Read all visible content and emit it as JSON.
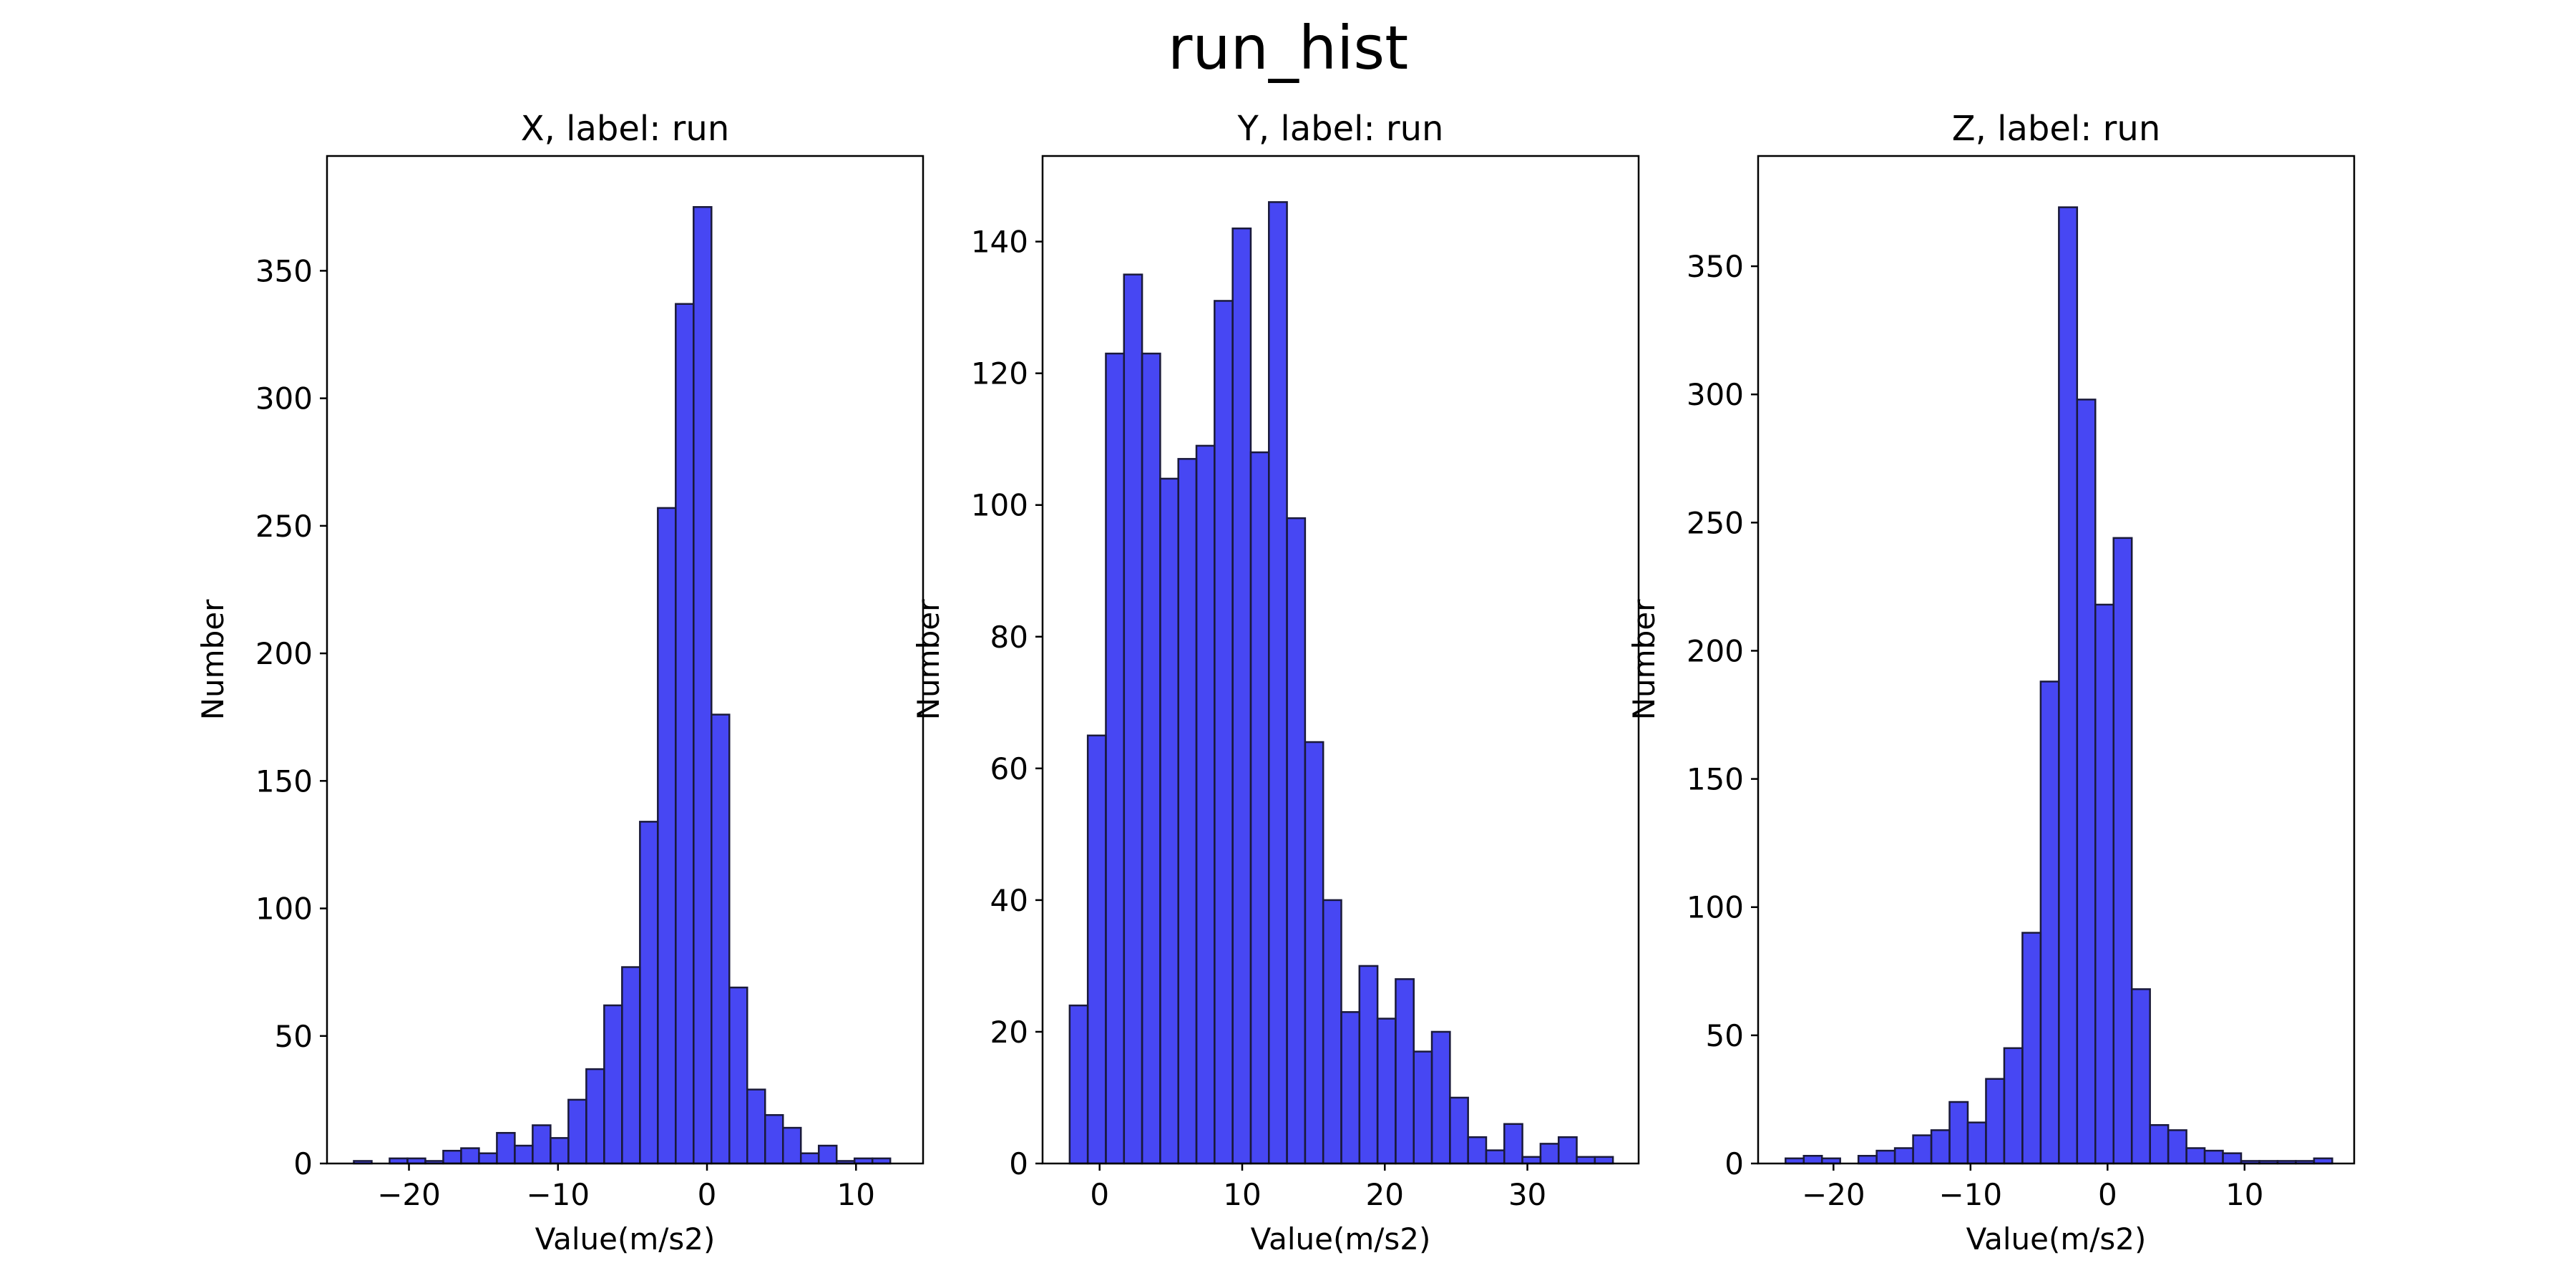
{
  "figure": {
    "suptitle": "run_hist",
    "bar_color": "#0000ee",
    "bar_edge_color": "#1a1a3a"
  },
  "chart_data": [
    {
      "type": "bar",
      "title": "X, label: run",
      "xlabel": "Value(m/s2)",
      "ylabel": "Number",
      "xlim": [
        -25.5,
        14.5
      ],
      "ylim": [
        0,
        395
      ],
      "xticks": [
        -20,
        -10,
        0,
        10
      ],
      "xtick_labels": [
        "−20",
        "−10",
        "0",
        "10"
      ],
      "yticks": [
        0,
        50,
        100,
        150,
        200,
        250,
        300,
        350
      ],
      "yticks_labels": [
        "0",
        "50",
        "100",
        "150",
        "200",
        "250",
        "300",
        "350"
      ],
      "bin_start": -23.7,
      "bin_width": 1.2,
      "values": [
        1,
        0,
        2,
        2,
        1,
        5,
        6,
        4,
        12,
        7,
        15,
        10,
        25,
        37,
        62,
        77,
        134,
        257,
        337,
        375,
        176,
        69,
        29,
        19,
        14,
        4,
        7,
        1,
        2,
        2
      ]
    },
    {
      "type": "bar",
      "title": "Y, label: run",
      "xlabel": "Value(m/s2)",
      "ylabel": "Number",
      "xlim": [
        -4.0,
        37.8
      ],
      "ylim": [
        0,
        153
      ],
      "xticks": [
        0,
        10,
        20,
        30
      ],
      "xtick_labels": [
        "0",
        "10",
        "20",
        "30"
      ],
      "yticks": [
        0,
        20,
        40,
        60,
        80,
        100,
        120,
        140
      ],
      "yticks_labels": [
        "0",
        "20",
        "40",
        "60",
        "80",
        "100",
        "120",
        "140"
      ],
      "bin_start": -2.1,
      "bin_width": 1.27,
      "values": [
        24,
        65,
        123,
        135,
        123,
        104,
        107,
        109,
        131,
        142,
        108,
        146,
        98,
        64,
        40,
        23,
        30,
        22,
        28,
        17,
        20,
        10,
        4,
        2,
        6,
        1,
        3,
        4,
        1,
        1
      ]
    },
    {
      "type": "bar",
      "title": "Z, label: run",
      "xlabel": "Value(m/s2)",
      "ylabel": "Number",
      "xlim": [
        -25.5,
        18.0
      ],
      "ylim": [
        0,
        393
      ],
      "xticks": [
        -20,
        -10,
        0,
        10
      ],
      "xtick_labels": [
        "−20",
        "−10",
        "0",
        "10"
      ],
      "yticks": [
        0,
        50,
        100,
        150,
        200,
        250,
        300,
        350
      ],
      "yticks_labels": [
        "0",
        "50",
        "100",
        "150",
        "200",
        "250",
        "300",
        "350"
      ],
      "bin_start": -23.5,
      "bin_width": 1.33,
      "values": [
        2,
        3,
        2,
        0,
        3,
        5,
        6,
        11,
        13,
        24,
        16,
        33,
        45,
        90,
        188,
        373,
        298,
        218,
        244,
        68,
        15,
        13,
        6,
        5,
        4,
        1,
        1,
        1,
        1,
        2
      ]
    }
  ]
}
